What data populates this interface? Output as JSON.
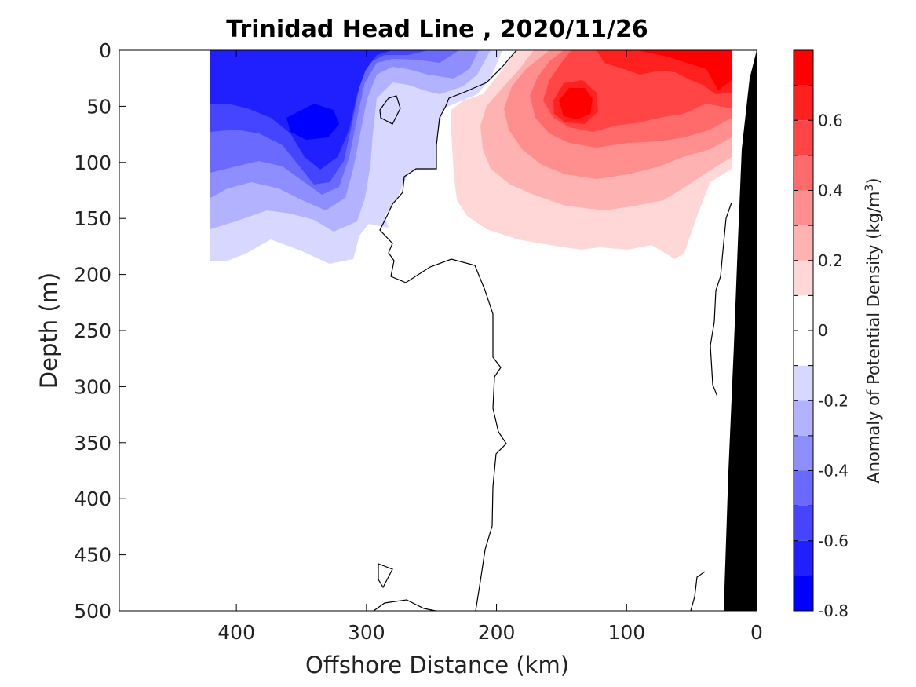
{
  "chart_data": {
    "type": "contour",
    "title": "Trinidad Head Line , 2020/11/26",
    "xlabel": "Offshore Distance (km)",
    "ylabel": "Depth (m)",
    "xlim": [
      490,
      0
    ],
    "ylim": [
      500,
      0
    ],
    "x_ticks": [
      "400",
      "300",
      "200",
      "100",
      "0"
    ],
    "x_tick_values": [
      400,
      300,
      200,
      100,
      0
    ],
    "y_ticks": [
      "0",
      "50",
      "100",
      "150",
      "200",
      "250",
      "300",
      "350",
      "400",
      "450",
      "500"
    ],
    "y_tick_values": [
      0,
      50,
      100,
      150,
      200,
      250,
      300,
      350,
      400,
      450,
      500
    ],
    "colorbar": {
      "label": "Anomaly of Potential Density (kg/m",
      "label_sup": "3",
      "label_end": ")",
      "ticks": [
        "0.6",
        "0.4",
        "0.2",
        "0",
        "-0.2",
        "-0.4",
        "-0.6",
        "-0.8"
      ],
      "tick_values": [
        0.6,
        0.4,
        0.2,
        0,
        -0.2,
        -0.4,
        -0.6,
        -0.8
      ],
      "range": [
        -0.8,
        0.8
      ],
      "levels": [
        {
          "from": -0.8,
          "to": -0.7,
          "color": "#0000ff"
        },
        {
          "from": -0.7,
          "to": -0.6,
          "color": "#2020ff"
        },
        {
          "from": -0.6,
          "to": -0.5,
          "color": "#4545ff"
        },
        {
          "from": -0.5,
          "to": -0.4,
          "color": "#6a6aff"
        },
        {
          "from": -0.4,
          "to": -0.3,
          "color": "#8e8eff"
        },
        {
          "from": -0.3,
          "to": -0.2,
          "color": "#b2b2ff"
        },
        {
          "from": -0.2,
          "to": -0.1,
          "color": "#d7d7ff"
        },
        {
          "from": -0.1,
          "to": 0.0,
          "color": "#ffffff"
        },
        {
          "from": 0.0,
          "to": 0.1,
          "color": "#ffffff"
        },
        {
          "from": 0.1,
          "to": 0.2,
          "color": "#ffd7d7"
        },
        {
          "from": 0.2,
          "to": 0.3,
          "color": "#ffb2b2"
        },
        {
          "from": 0.3,
          "to": 0.4,
          "color": "#ff8e8e"
        },
        {
          "from": 0.4,
          "to": 0.5,
          "color": "#ff6a6a"
        },
        {
          "from": 0.5,
          "to": 0.6,
          "color": "#ff4545"
        },
        {
          "from": 0.6,
          "to": 0.7,
          "color": "#ff2020"
        },
        {
          "from": 0.7,
          "to": 0.8,
          "color": "#ff0000"
        }
      ]
    },
    "bathymetry_color": "#000000",
    "zero_contour_color": "#000000"
  }
}
